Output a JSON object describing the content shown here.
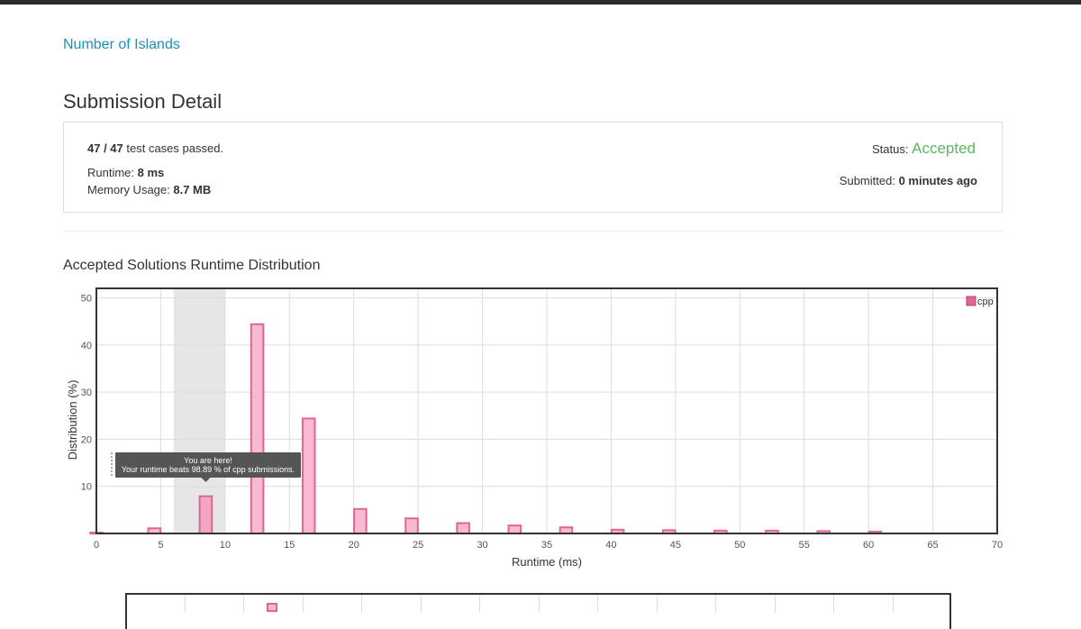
{
  "problem": {
    "title": "Number of Islands"
  },
  "page": {
    "title": "Submission Detail"
  },
  "detail": {
    "passed": "47 / 47",
    "passed_suffix": "test cases passed.",
    "runtime_label": "Runtime:",
    "runtime_value": "8 ms",
    "memory_label": "Memory Usage:",
    "memory_value": "8.7 MB",
    "status_label": "Status:",
    "status_value": "Accepted",
    "submitted_label": "Submitted:",
    "submitted_value": "0 minutes ago"
  },
  "colors": {
    "accepted": "#5cb85c",
    "link": "#1a90bb",
    "bar_fill": "#f9b9d1",
    "bar_stroke": "#e06495",
    "highlight_fill": "#f0a6c4"
  },
  "section": {
    "title": "Accepted Solutions Runtime Distribution"
  },
  "chart_data": {
    "type": "bar",
    "xlabel": "Runtime (ms)",
    "ylabel": "Distribution (%)",
    "xlim": [
      0,
      70
    ],
    "ylim": [
      0,
      52
    ],
    "xticks": [
      0,
      5,
      10,
      15,
      20,
      25,
      30,
      35,
      40,
      45,
      50,
      55,
      60,
      65,
      70
    ],
    "yticks": [
      10,
      20,
      30,
      40,
      50
    ],
    "grid": true,
    "legend_position": "top-right",
    "series": [
      {
        "name": "cpp",
        "x": [
          0,
          4.5,
          8.5,
          12.5,
          16.5,
          20.5,
          24.5,
          28.5,
          32.5,
          36.5,
          40.5,
          44.5,
          48.5,
          52.5,
          56.5,
          60.5
        ],
        "values": [
          0.2,
          1.1,
          7.9,
          44.4,
          24.4,
          5.2,
          3.2,
          2.2,
          1.7,
          1.3,
          0.8,
          0.7,
          0.6,
          0.6,
          0.5,
          0.4
        ]
      }
    ],
    "highlight_range": [
      6,
      10
    ],
    "your_bar_x": 8.5,
    "tooltip": {
      "line1": "You are here!",
      "line2": "Your runtime beats 98.89 % of cpp submissions."
    }
  }
}
